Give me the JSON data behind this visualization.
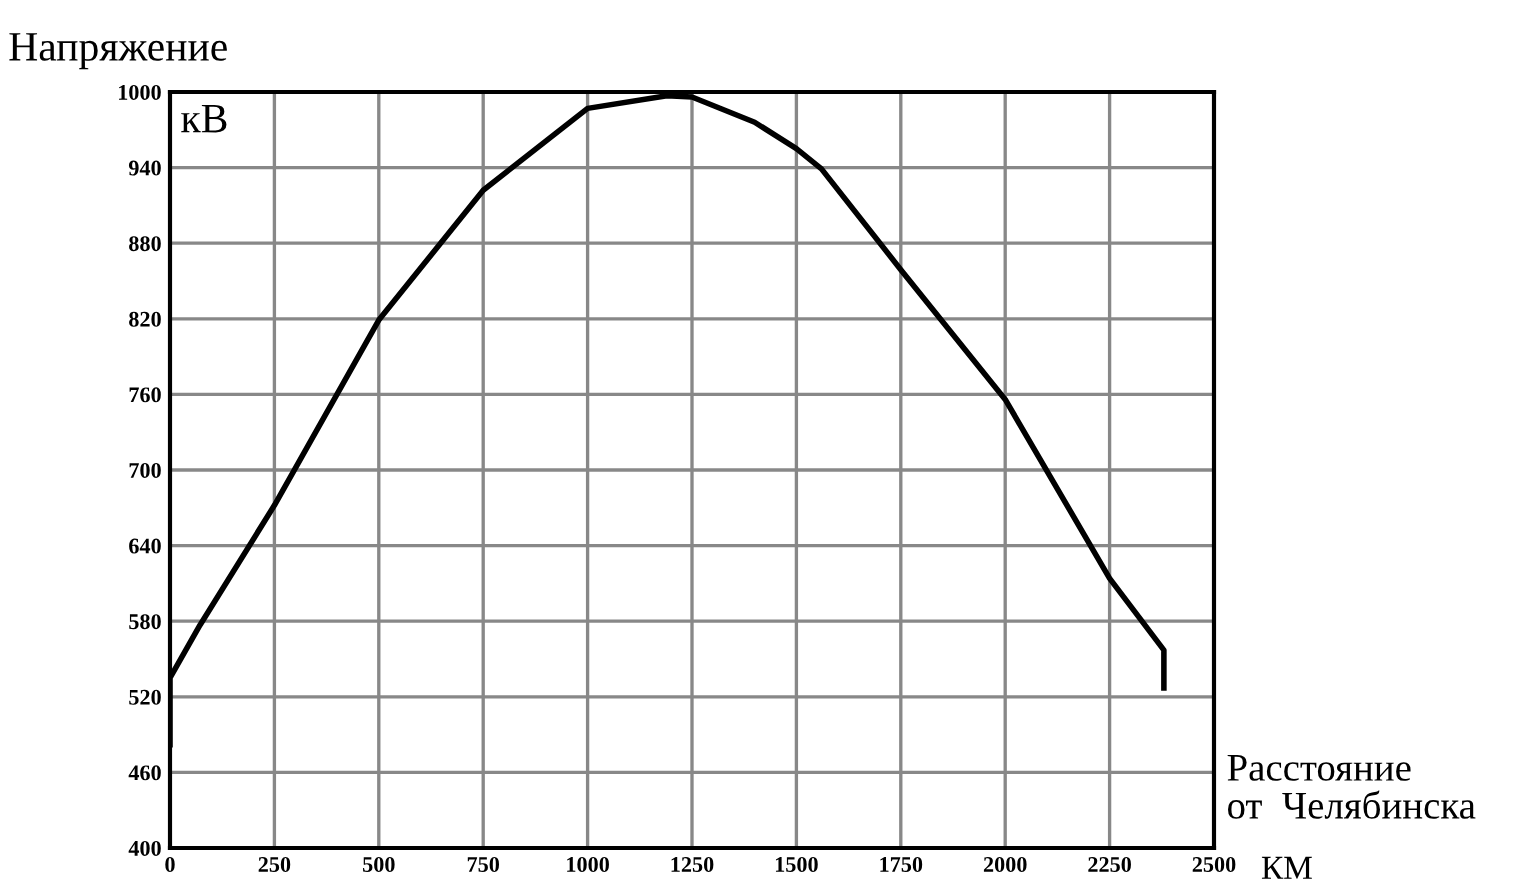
{
  "chart_data": {
    "type": "line",
    "ylabel": "Напряжение",
    "xlabel": "Расстояние\nот  Челябинска",
    "annotations": [
      "кВ",
      "КМ"
    ],
    "series": [
      {
        "color": "#000000",
        "x": [
          0,
          0,
          72,
          250,
          500,
          750,
          1000,
          1190,
          1250,
          1400,
          1500,
          1560,
          1750,
          2000,
          2250,
          2380,
          2380
        ],
        "values": [
          482,
          535,
          577,
          672,
          819,
          922,
          987,
          997,
          996,
          976,
          955,
          939,
          859,
          756,
          614,
          557,
          527
        ]
      }
    ],
    "xlim": [
      0,
      2500
    ],
    "ylim": [
      400,
      1000
    ],
    "xticks": [
      0,
      250,
      500,
      750,
      1000,
      1250,
      1500,
      1750,
      2000,
      2250,
      2500
    ],
    "yticks": [
      400,
      460,
      520,
      580,
      640,
      700,
      760,
      820,
      880,
      940,
      1000
    ],
    "grid": true,
    "marker": "none",
    "line_style": "solid",
    "legend": false
  }
}
